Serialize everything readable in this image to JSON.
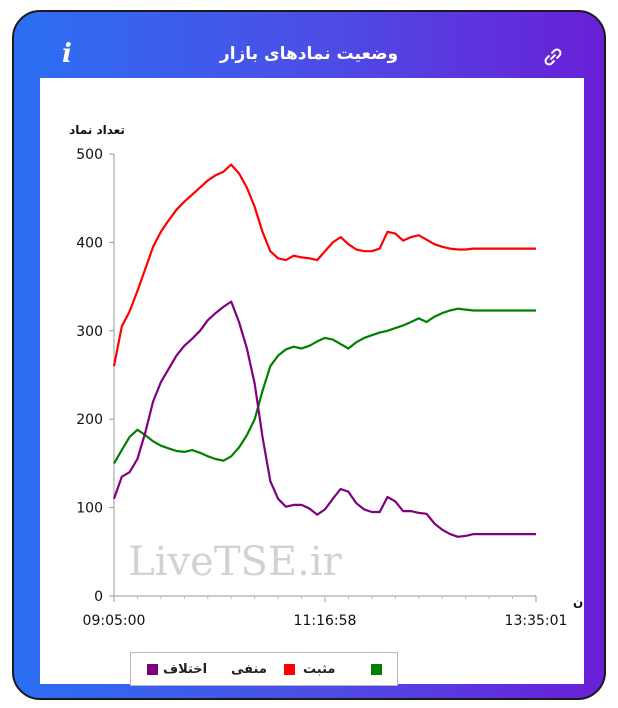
{
  "header": {
    "title": "وضعیت نمادهای بازار",
    "info_icon": "info-icon",
    "link_icon": "link-icon"
  },
  "watermark": "LiveTSE.ir",
  "chart_data": {
    "type": "line",
    "ylabel": "تعداد نماد",
    "xlabel": "زمان",
    "ylim": [
      0,
      500
    ],
    "yticks": [
      0,
      100,
      200,
      300,
      400,
      500
    ],
    "xtick_labels": [
      "09:05:00",
      "11:16:58",
      "13:35:01"
    ],
    "xlim_minutes": [
      0,
      270
    ],
    "grid": false,
    "legend_position": "bottom",
    "series": [
      {
        "name": "منفی",
        "color": "#ff0000",
        "x": [
          "09:05:00",
          "09:10:00",
          "09:15:00",
          "09:20:00",
          "09:25:00",
          "09:30:00",
          "09:35:00",
          "09:40:00",
          "09:45:00",
          "09:50:00",
          "09:55:00",
          "10:00:00",
          "10:05:00",
          "10:10:00",
          "10:15:00",
          "10:20:00",
          "10:25:00",
          "10:30:00",
          "10:35:00",
          "10:40:00",
          "10:45:00",
          "10:50:00",
          "10:55:00",
          "11:00:00",
          "11:05:00",
          "11:10:00",
          "11:15:00",
          "11:20:00",
          "11:25:00",
          "11:30:00",
          "11:35:00",
          "11:40:00",
          "11:45:00",
          "11:50:00",
          "11:55:00",
          "12:00:00",
          "12:05:00",
          "12:10:00",
          "12:15:00",
          "12:20:00",
          "12:25:00",
          "12:30:00",
          "12:35:00",
          "12:40:00",
          "12:45:00",
          "12:50:00",
          "12:55:00",
          "13:00:00",
          "13:05:00",
          "13:10:00",
          "13:20:00",
          "13:35:01"
        ],
        "values": [
          260,
          305,
          322,
          345,
          370,
          395,
          412,
          425,
          437,
          446,
          454,
          462,
          470,
          476,
          480,
          488,
          478,
          462,
          440,
          412,
          390,
          382,
          380,
          385,
          383,
          382,
          380,
          390,
          400,
          406,
          398,
          392,
          390,
          390,
          393,
          412,
          410,
          402,
          406,
          408,
          403,
          398,
          395,
          393,
          392,
          392,
          393,
          393,
          393,
          393,
          393,
          393
        ]
      },
      {
        "name": "مثبت",
        "color": "#008000",
        "x": [
          "09:05:00",
          "09:10:00",
          "09:15:00",
          "09:20:00",
          "09:25:00",
          "09:30:00",
          "09:35:00",
          "09:40:00",
          "09:45:00",
          "09:50:00",
          "09:55:00",
          "10:00:00",
          "10:05:00",
          "10:10:00",
          "10:15:00",
          "10:20:00",
          "10:25:00",
          "10:30:00",
          "10:35:00",
          "10:40:00",
          "10:45:00",
          "10:50:00",
          "10:55:00",
          "11:00:00",
          "11:05:00",
          "11:10:00",
          "11:15:00",
          "11:20:00",
          "11:25:00",
          "11:30:00",
          "11:35:00",
          "11:40:00",
          "11:45:00",
          "11:50:00",
          "11:55:00",
          "12:00:00",
          "12:05:00",
          "12:10:00",
          "12:15:00",
          "12:20:00",
          "12:25:00",
          "12:30:00",
          "12:35:00",
          "12:40:00",
          "12:45:00",
          "12:50:00",
          "12:55:00",
          "13:00:00",
          "13:05:00",
          "13:10:00",
          "13:20:00",
          "13:35:01"
        ],
        "values": [
          150,
          165,
          180,
          188,
          182,
          175,
          170,
          167,
          164,
          163,
          165,
          162,
          158,
          155,
          153,
          158,
          168,
          182,
          200,
          232,
          260,
          272,
          279,
          282,
          280,
          283,
          288,
          292,
          290,
          285,
          280,
          287,
          292,
          295,
          298,
          300,
          303,
          306,
          310,
          314,
          310,
          316,
          320,
          323,
          325,
          324,
          323,
          323,
          323,
          323,
          323,
          323
        ]
      },
      {
        "name": "اختلاف",
        "color": "#800080",
        "x": [
          "09:05:00",
          "09:10:00",
          "09:15:00",
          "09:20:00",
          "09:25:00",
          "09:30:00",
          "09:35:00",
          "09:40:00",
          "09:45:00",
          "09:50:00",
          "09:55:00",
          "10:00:00",
          "10:05:00",
          "10:10:00",
          "10:15:00",
          "10:20:00",
          "10:25:00",
          "10:30:00",
          "10:35:00",
          "10:40:00",
          "10:45:00",
          "10:50:00",
          "10:55:00",
          "11:00:00",
          "11:05:00",
          "11:10:00",
          "11:15:00",
          "11:20:00",
          "11:25:00",
          "11:30:00",
          "11:35:00",
          "11:40:00",
          "11:45:00",
          "11:50:00",
          "11:55:00",
          "12:00:00",
          "12:05:00",
          "12:10:00",
          "12:15:00",
          "12:20:00",
          "12:25:00",
          "12:30:00",
          "12:35:00",
          "12:40:00",
          "12:45:00",
          "12:50:00",
          "12:55:00",
          "13:00:00",
          "13:05:00",
          "13:10:00",
          "13:20:00",
          "13:35:01"
        ],
        "values": [
          110,
          135,
          140,
          155,
          185,
          220,
          242,
          257,
          272,
          283,
          291,
          300,
          312,
          320,
          327,
          333,
          310,
          280,
          240,
          180,
          130,
          110,
          101,
          103,
          103,
          99,
          92,
          98,
          110,
          121,
          118,
          105,
          98,
          95,
          95,
          112,
          107,
          96,
          96,
          94,
          93,
          82,
          75,
          70,
          67,
          68,
          70,
          70,
          70,
          70,
          70,
          70
        ]
      }
    ]
  }
}
